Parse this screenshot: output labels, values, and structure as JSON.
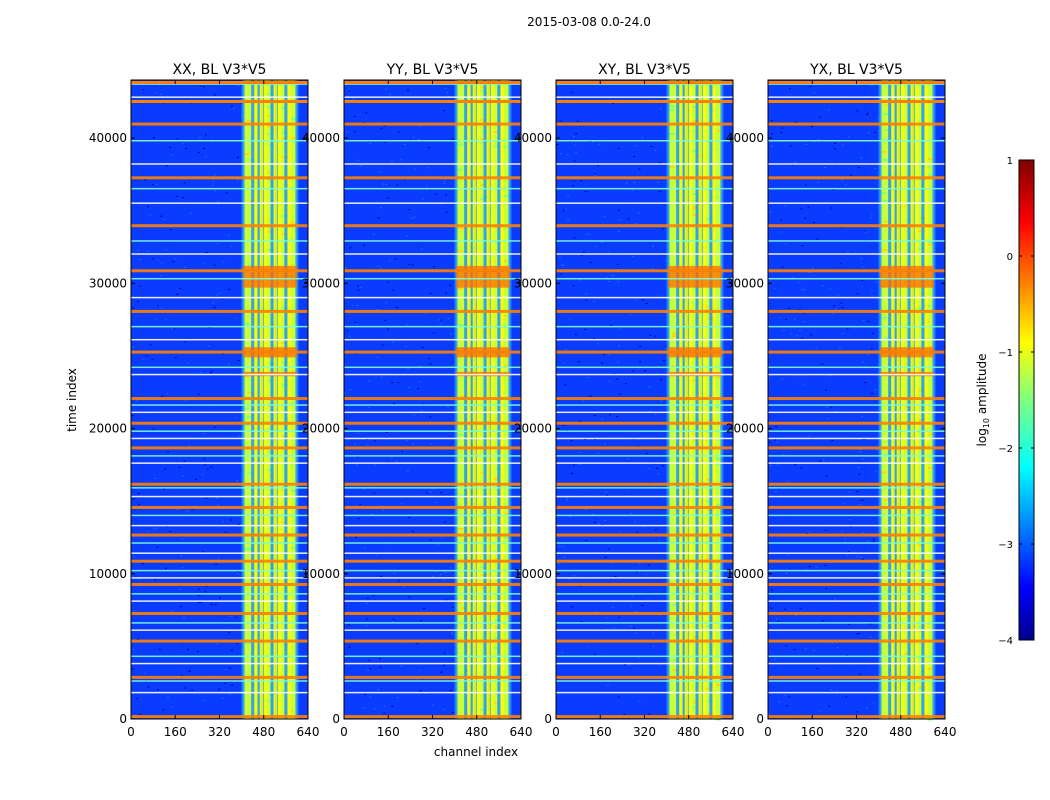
{
  "figure": {
    "suptitle": "2015-03-08 0.0-24.0"
  },
  "chart_data": {
    "type": "heatmap",
    "xlabel": "channel index",
    "ylabel": "time index",
    "x_ticks": [
      0,
      160,
      320,
      480,
      640
    ],
    "y_ticks": [
      0,
      10000,
      20000,
      30000,
      40000
    ],
    "xlim": [
      0,
      640
    ],
    "ylim": [
      0,
      44000
    ],
    "colorbar": {
      "label": "log10 amplitude",
      "label_main": "log",
      "label_sub": "10",
      "label_tail": " amplitude",
      "ticks": [
        1,
        0,
        -1,
        -2,
        -3,
        -4
      ],
      "tick_labels": [
        "1",
        "0",
        "−1",
        "−2",
        "−3",
        "−4"
      ],
      "range": [
        -4,
        1
      ],
      "colormap": "jet"
    },
    "panels": [
      {
        "title": "XX, BL V3*V5",
        "polarization": "XX"
      },
      {
        "title": "YY, BL V3*V5",
        "polarization": "YY"
      },
      {
        "title": "XY, BL V3*V5",
        "polarization": "XY"
      },
      {
        "title": "YX, BL V3*V5",
        "polarization": "YX"
      }
    ],
    "band": {
      "channel_start": 405,
      "channel_end": 600,
      "bright_channels": [
        405,
        440,
        460,
        475,
        510,
        525,
        560,
        600
      ],
      "low_amplitude_background": -3.4,
      "band_amplitude": -0.9
    },
    "flagged_time_rows": [
      200,
      1800,
      2600,
      2900,
      3800,
      4300,
      5400,
      6100,
      6600,
      7300,
      8100,
      8600,
      9300,
      9700,
      10200,
      10900,
      11400,
      12100,
      12700,
      13300,
      14000,
      14600,
      15300,
      15900,
      16200,
      17600,
      18100,
      18700,
      19300,
      19800,
      20400,
      21100,
      21600,
      22100,
      23700,
      24200,
      25300,
      26100,
      27000,
      28100,
      29000,
      30300,
      30900,
      32000,
      32900,
      34000,
      35500,
      36500,
      37300,
      38200,
      39800,
      41000,
      42800,
      43700
    ],
    "hot_time_ranges": [
      [
        23600,
        23900
      ],
      [
        24900,
        25600
      ],
      [
        29700,
        31200
      ]
    ]
  },
  "colors": {
    "jet_low": "#00008f",
    "jet_bg": "#0a3cff",
    "jet_mid": "#7fff7f",
    "jet_high": "#ff8000",
    "jet_top": "#800000"
  }
}
